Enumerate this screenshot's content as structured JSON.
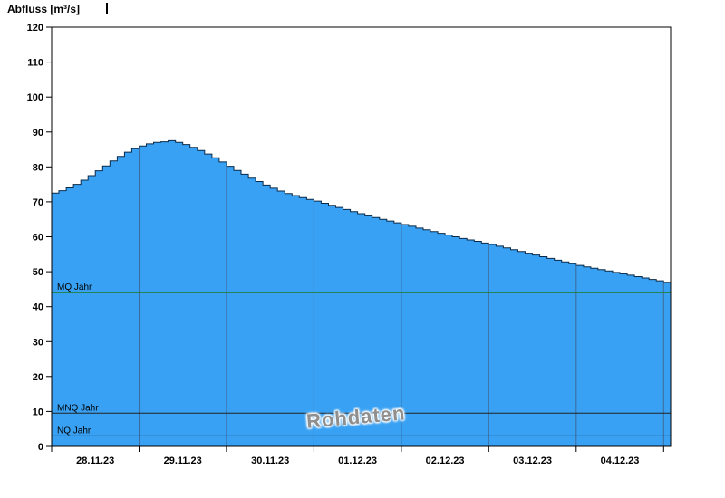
{
  "watermark": {
    "text": "Rohdaten"
  },
  "colors": {
    "fill": "#38A1F3",
    "outline": "#0A2A4A",
    "grid": "#3D6B99",
    "mq_line": "#1F7A1F",
    "ref_line": "#222222",
    "frame": "#000000",
    "text": "#000000"
  },
  "chart_data": {
    "type": "area",
    "title": "Abfluss [m³/s]",
    "ylabel": "Abfluss [m³/s]",
    "xlabel": "",
    "ylim": [
      0,
      120
    ],
    "y_tick_step": 10,
    "grid": "vertical-daily",
    "x_labels": [
      "28.11.23",
      "29.11.23",
      "30.11.23",
      "01.12.23",
      "02.12.23",
      "03.12.23",
      "04.12.23"
    ],
    "x_extend_days": 7.08,
    "values_interval_hours": 2,
    "values": [
      72.5,
      73.2,
      74.0,
      75.0,
      76.2,
      77.5,
      78.9,
      80.3,
      81.7,
      83.0,
      84.2,
      85.2,
      86.0,
      86.6,
      87.0,
      87.2,
      87.5,
      87.0,
      86.4,
      85.6,
      84.7,
      83.7,
      82.6,
      81.4,
      80.2,
      79.0,
      77.9,
      76.8,
      75.8,
      74.8,
      73.9,
      73.1,
      72.4,
      71.8,
      71.2,
      70.7,
      70.2,
      69.6,
      69.0,
      68.4,
      67.8,
      67.2,
      66.6,
      66.0,
      65.5,
      65.0,
      64.5,
      64.0,
      63.5,
      63.0,
      62.5,
      62.0,
      61.5,
      61.0,
      60.5,
      60.0,
      59.5,
      59.1,
      58.7,
      58.2,
      57.8,
      57.3,
      56.8,
      56.3,
      55.8,
      55.3,
      54.8,
      54.3,
      53.8,
      53.3,
      52.8,
      52.3,
      51.8,
      51.4,
      51.0,
      50.6,
      50.2,
      49.8,
      49.4,
      49.0,
      48.6,
      48.2,
      47.8,
      47.4,
      47.0
    ],
    "ref_lines": [
      {
        "label": "MQ Jahr",
        "value": 44,
        "color_key": "mq_line"
      },
      {
        "label": "MNQ Jahr",
        "value": 9.5,
        "color_key": "ref_line"
      },
      {
        "label": "NQ Jahr",
        "value": 3,
        "color_key": "ref_line"
      }
    ]
  }
}
